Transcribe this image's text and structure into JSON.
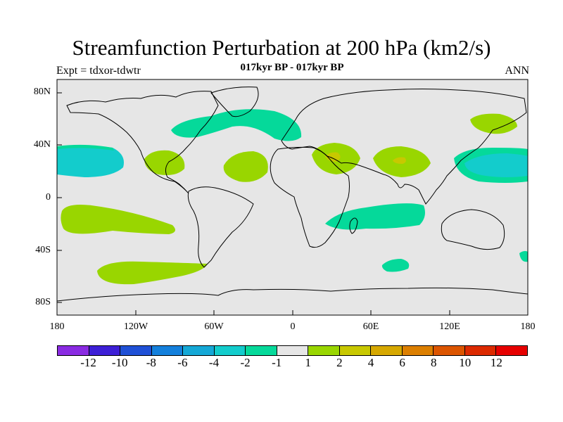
{
  "map": {
    "title": "Streamfunction Perturbation at 200 hPa (km2/s)",
    "subtitle": "017kyr BP - 017kyr BP",
    "left_label": "Expt = tdxor-tdwtr",
    "right_label": "ANN",
    "lat_ticks": [
      {
        "label": "80N",
        "lat": 80
      },
      {
        "label": "40N",
        "lat": 40
      },
      {
        "label": "0",
        "lat": 0
      },
      {
        "label": "40S",
        "lat": -40
      },
      {
        "label": "80S",
        "lat": -80
      }
    ],
    "lon_ticks": [
      {
        "label": "180",
        "lon": -180
      },
      {
        "label": "120W",
        "lon": -120
      },
      {
        "label": "60W",
        "lon": -60
      },
      {
        "label": "0",
        "lon": 0
      },
      {
        "label": "60E",
        "lon": 60
      },
      {
        "label": "120E",
        "lon": 120
      },
      {
        "label": "180",
        "lon": 180
      }
    ],
    "background_color": "#e6e6e6"
  },
  "colorbar": {
    "colors": [
      "#8a2be2",
      "#3d1fd6",
      "#1f50d6",
      "#1480dc",
      "#15a8d6",
      "#13cccc",
      "#05d99a",
      "#e6e6e6",
      "#99d600",
      "#c8c800",
      "#d6a800",
      "#dc7f00",
      "#dc5500",
      "#dc2a00",
      "#e60000"
    ],
    "labels": [
      "-12",
      "-10",
      "-8",
      "-6",
      "-4",
      "-2",
      "-1",
      "1",
      "2",
      "4",
      "6",
      "8",
      "10",
      "12"
    ]
  }
}
